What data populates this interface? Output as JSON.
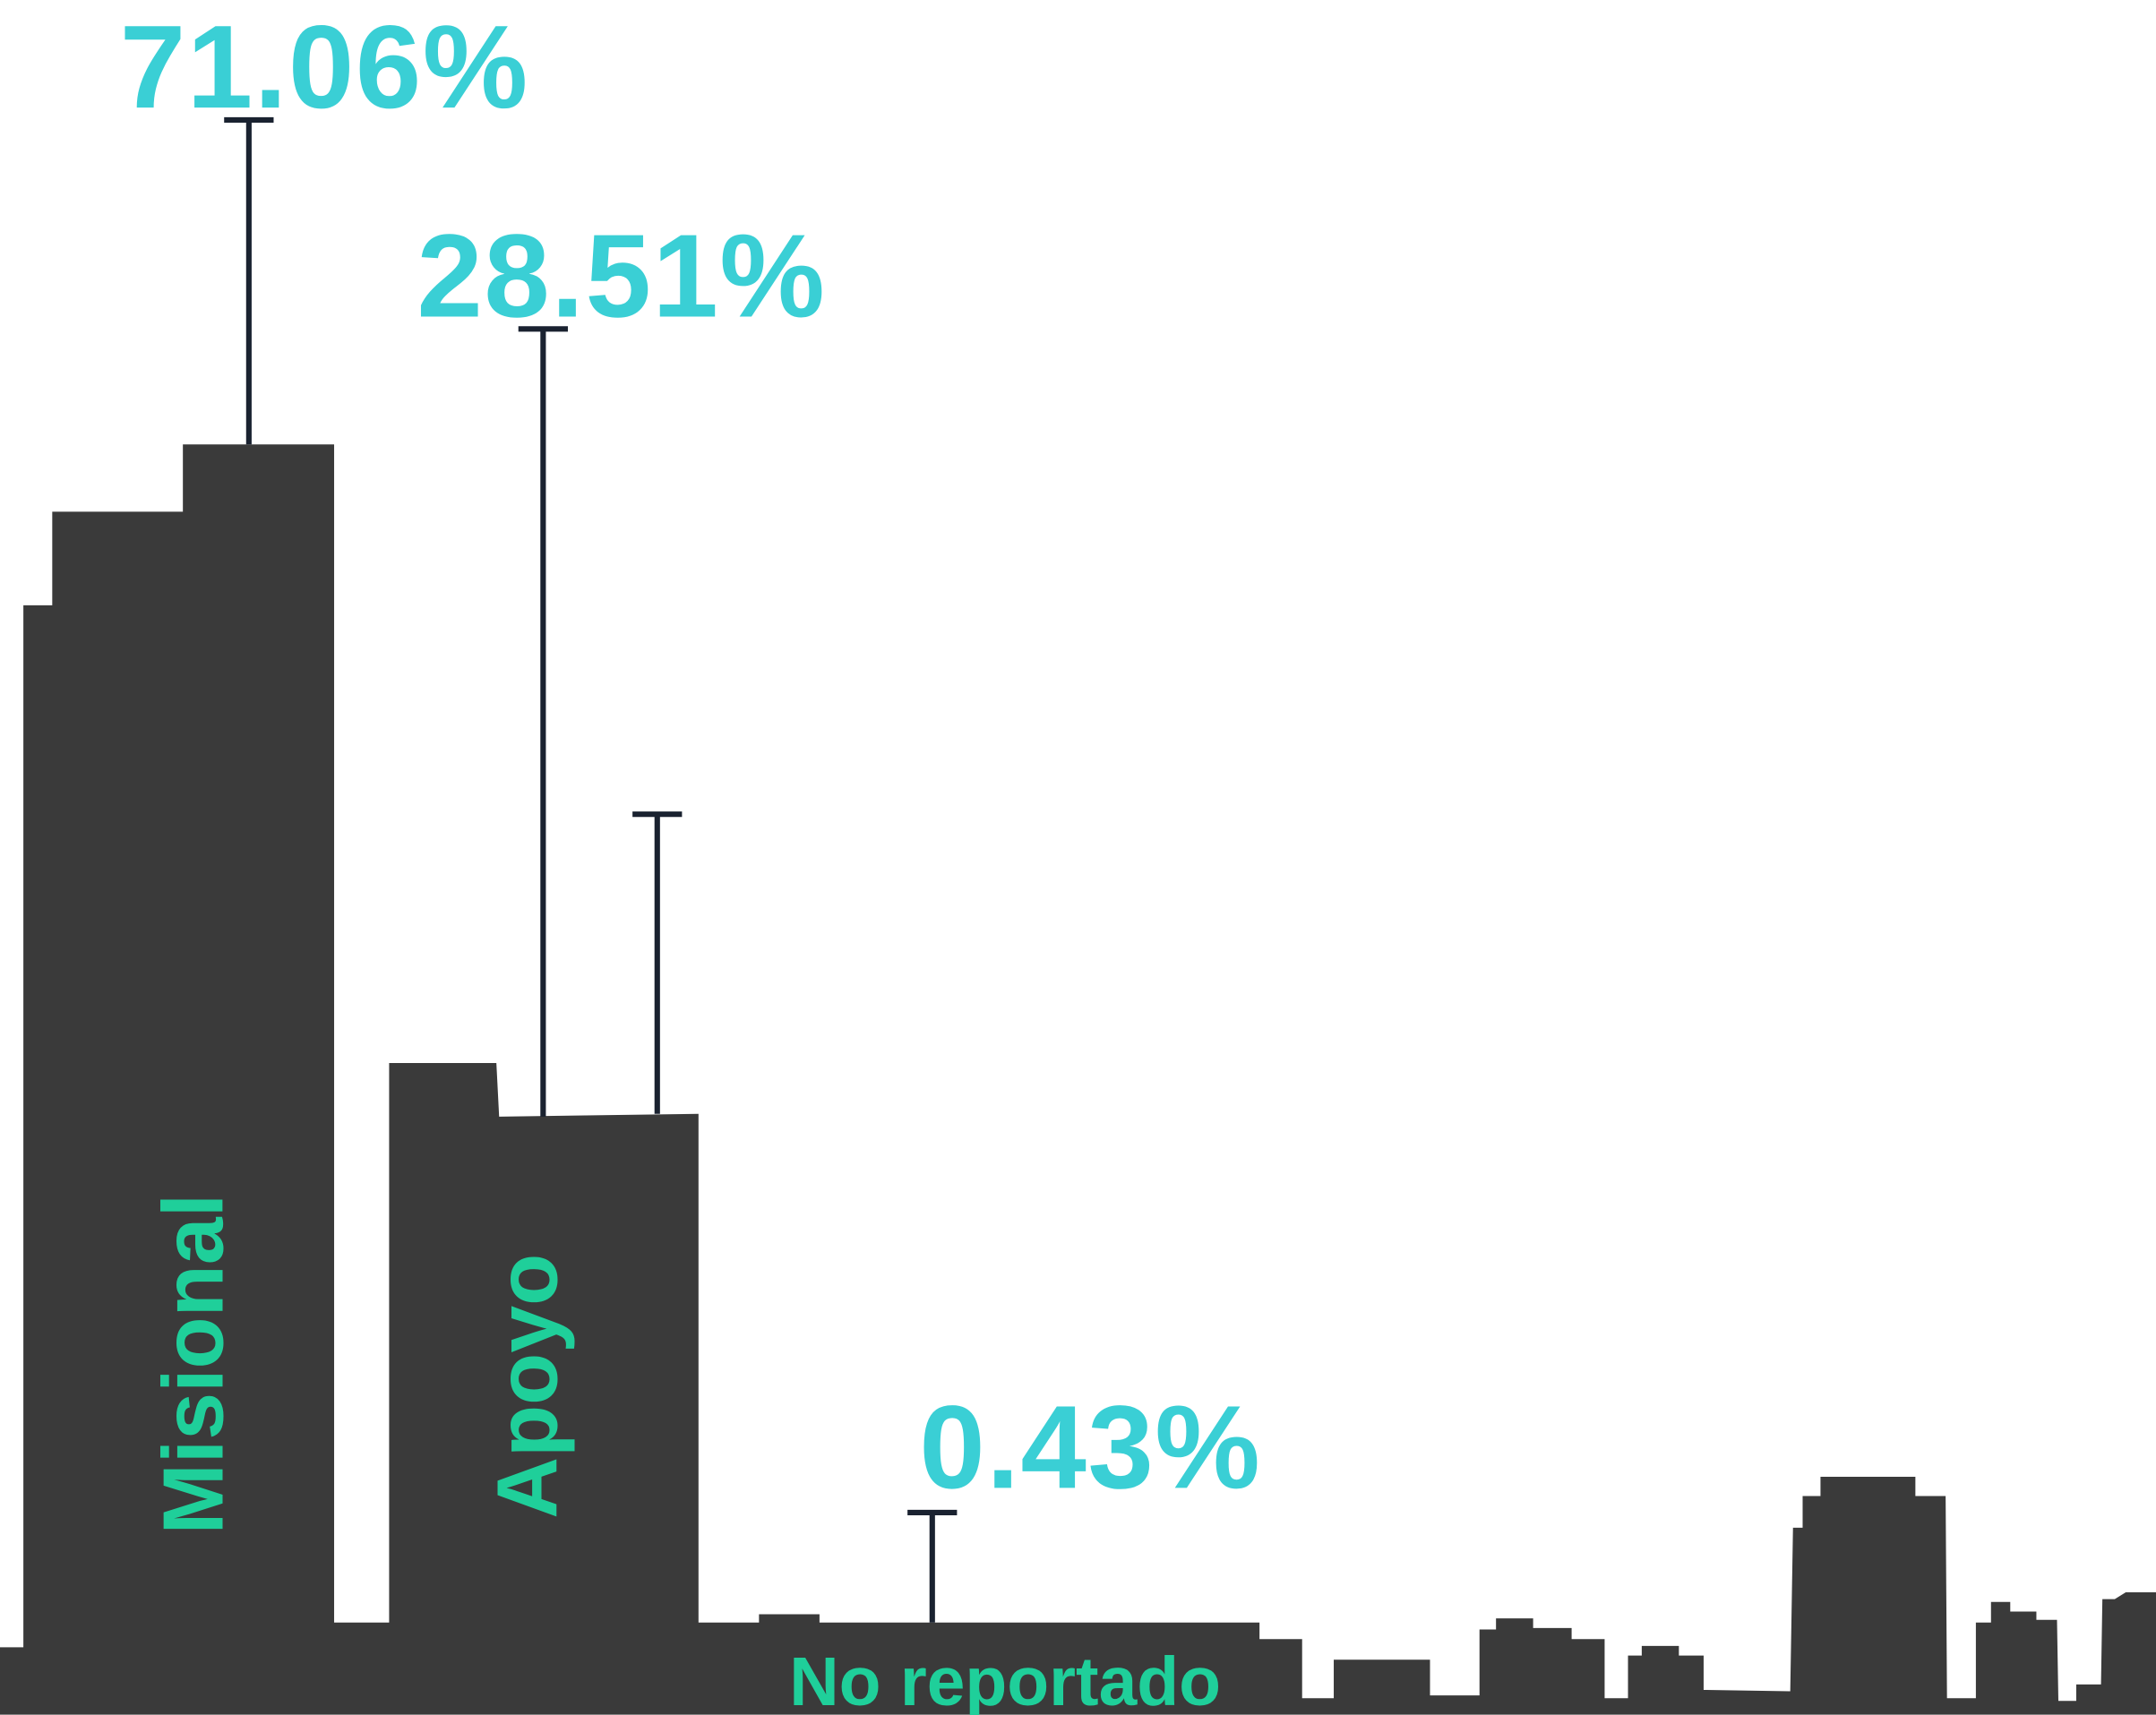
{
  "chart_data": {
    "type": "bar",
    "categories": [
      "Misional",
      "Apoyo",
      "No reportado"
    ],
    "values": [
      71.06,
      28.51,
      0.43
    ],
    "value_labels": [
      "71.06%",
      "28.51%",
      "0.43%"
    ],
    "color": "#3a3a3a"
  }
}
